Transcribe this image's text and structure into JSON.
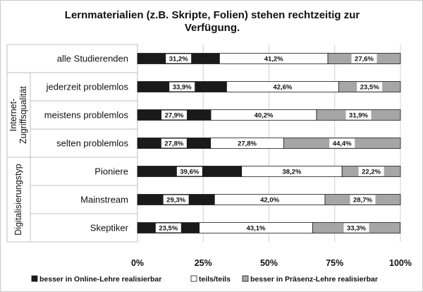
{
  "title_line1": "Lernmaterialien (z.B. Skripte, Folien) stehen rechtzeitig zur",
  "title_line2": "Verfügung.",
  "chart_data": {
    "type": "bar",
    "orientation": "horizontal",
    "stacked": true,
    "percent_stacked": true,
    "categories": [
      "alle Studierenden",
      "jederzeit problemlos",
      "meistens problemlos",
      "selten problemlos",
      "Pioniere",
      "Mainstream",
      "Skeptiker"
    ],
    "groups": [
      {
        "label": "Internet-\nZugriffsqualität",
        "categories": [
          "jederzeit problemlos",
          "meistens problemlos",
          "selten problemlos"
        ]
      },
      {
        "label": "Digitalisierungstyp",
        "categories": [
          "Pioniere",
          "Mainstream",
          "Skeptiker"
        ]
      }
    ],
    "series": [
      {
        "name": "besser in Online-Lehre realisierbar",
        "color": "#1a1a1a",
        "values": [
          31.2,
          33.9,
          27.9,
          27.8,
          39.6,
          29.3,
          23.5
        ],
        "labels": [
          "31,2%",
          "33,9%",
          "27,9%",
          "27,8%",
          "39,6%",
          "29,3%",
          "23,5%"
        ]
      },
      {
        "name": "teils/teils",
        "color": "#ffffff",
        "values": [
          41.2,
          42.6,
          40.2,
          27.8,
          38.2,
          42.0,
          43.1
        ],
        "labels": [
          "41,2%",
          "42,6%",
          "40,2%",
          "27,8%",
          "38,2%",
          "42,0%",
          "43,1%"
        ]
      },
      {
        "name": "besser in Präsenz-Lehre realisierbar",
        "color": "#a6a6a6",
        "values": [
          27.6,
          23.5,
          31.9,
          44.4,
          22.2,
          28.7,
          33.3
        ],
        "labels": [
          "27,6%",
          "23,5%",
          "31,9%",
          "44,4%",
          "22,2%",
          "28,7%",
          "33,3%"
        ]
      }
    ],
    "xlim": [
      0,
      100
    ],
    "xticks": [
      "0%",
      "25%",
      "50%",
      "75%",
      "100%"
    ],
    "grid": true,
    "legend_position": "bottom"
  }
}
